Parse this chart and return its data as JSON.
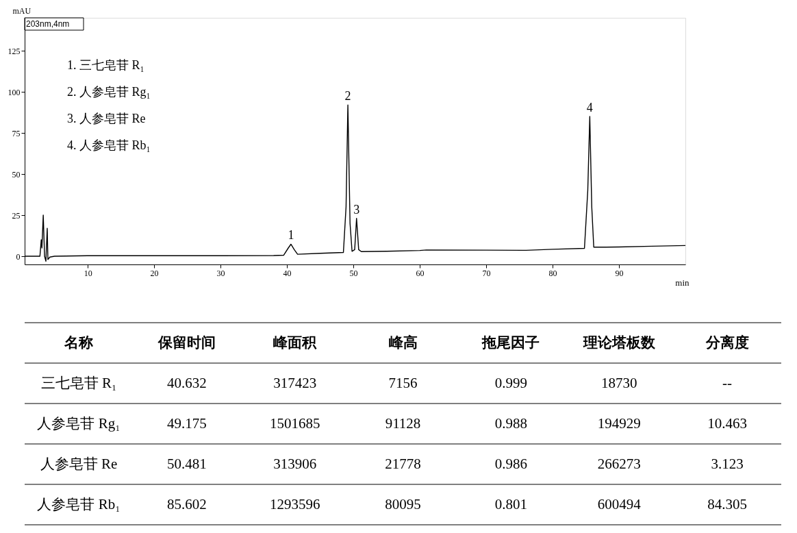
{
  "chart_data": [
    {
      "type": "line",
      "ylabel": "mAU",
      "xlabel": "min",
      "xlim": [
        0.5,
        100
      ],
      "ylim": [
        -5,
        145
      ],
      "xticks": [
        10,
        20,
        30,
        40,
        50,
        60,
        70,
        80,
        90
      ],
      "yticks": [
        0,
        25,
        50,
        75,
        100,
        125
      ],
      "grid": false,
      "marker": "none",
      "line_style": "solid",
      "x": [
        0.5,
        2.8,
        3.0,
        3.1,
        3.3,
        3.5,
        3.7,
        3.9,
        4.0,
        4.3,
        5,
        10,
        20,
        30,
        38,
        39.5,
        40.2,
        40.6,
        41.1,
        41.6,
        45,
        48.5,
        48.9,
        49.175,
        49.5,
        49.8,
        50.2,
        50.481,
        50.8,
        51.2,
        55,
        60,
        61,
        70,
        76,
        80,
        84.8,
        85.3,
        85.602,
        85.9,
        86.2,
        88,
        90,
        95,
        100
      ],
      "series": [
        {
          "color": "#000000",
          "values": [
            0,
            0,
            10,
            5,
            25,
            0,
            -3,
            17,
            -2,
            -0.5,
            0,
            0.3,
            0.3,
            0.3,
            0.4,
            0.6,
            5,
            7.3,
            4,
            1.2,
            1.8,
            2.3,
            30,
            92,
            20,
            3,
            4,
            23,
            4,
            2.8,
            3,
            3.5,
            3.8,
            3.7,
            3.6,
            4.2,
            4.8,
            40,
            85,
            30,
            5.5,
            5.5,
            5.6,
            6.1,
            6.5
          ]
        }
      ],
      "annotations": [
        "203nm,4nm",
        "1.  三七皂苷 R₁",
        "2.  人参皂苷 Rg₁",
        "3.  人参皂苷 Re",
        "4.  人参皂苷 Rb₁",
        {
          "text": "1",
          "x": 40.6,
          "y": 7.3
        },
        {
          "text": "2",
          "x": 49.175,
          "y": 92
        },
        {
          "text": "3",
          "x": 50.481,
          "y": 23
        },
        {
          "text": "4",
          "x": 85.602,
          "y": 85
        }
      ]
    },
    {
      "type": "other",
      "annotations": [
        "名称",
        "保留时间",
        "峰面积",
        "峰高",
        "拖尾因子",
        "理论塔板数",
        "分离度",
        "三七皂苷 R₁",
        "40.632",
        "317423",
        "7156",
        "0.999",
        "18730",
        "--",
        "人参皂苷 Rg₁",
        "49.175",
        "1501685",
        "91128",
        "0.988",
        "194929",
        "10.463",
        "人参皂苷 Re",
        "50.481",
        "313906",
        "21778",
        "0.986",
        "266273",
        "3.123",
        "人参皂苷 Rb₁",
        "85.602",
        "1293596",
        "80095",
        "0.801",
        "600494",
        "84.305"
      ]
    }
  ]
}
